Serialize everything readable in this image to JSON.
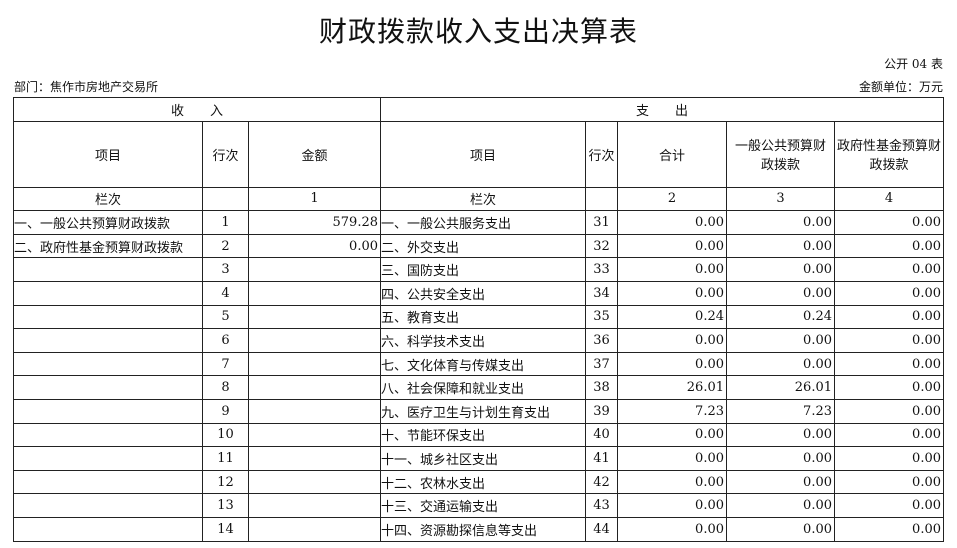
{
  "title": "财政拨款收入支出决算表",
  "table_code": "公开 04 表",
  "department": "部门：焦作市房地产交易所",
  "unit": "金额单位：万元",
  "income_header": "收　　入",
  "expense_header": "支　　出",
  "columns": {
    "item": "项目",
    "row_no": "行次",
    "amount": "金额",
    "exp_item": "项目",
    "exp_row_no": "行次",
    "total": "合计",
    "general": "一般公共预算财政拨款",
    "fund": "政府性基金预算财政拨款"
  },
  "column_index": {
    "label": "栏次",
    "c1": "1",
    "exp_label": "栏次",
    "c2": "2",
    "c3": "3",
    "c4": "4"
  },
  "rows": [
    {
      "in_item": "一、一般公共预算财政拨款",
      "in_no": "1",
      "in_amt": "579.28",
      "out_item": "一、一般公共服务支出",
      "out_no": "31",
      "total": "0.00",
      "general": "0.00",
      "fund": "0.00"
    },
    {
      "in_item": "二、政府性基金预算财政拨款",
      "in_no": "2",
      "in_amt": "0.00",
      "out_item": "二、外交支出",
      "out_no": "32",
      "total": "0.00",
      "general": "0.00",
      "fund": "0.00"
    },
    {
      "in_item": "",
      "in_no": "3",
      "in_amt": "",
      "out_item": "三、国防支出",
      "out_no": "33",
      "total": "0.00",
      "general": "0.00",
      "fund": "0.00"
    },
    {
      "in_item": "",
      "in_no": "4",
      "in_amt": "",
      "out_item": "四、公共安全支出",
      "out_no": "34",
      "total": "0.00",
      "general": "0.00",
      "fund": "0.00"
    },
    {
      "in_item": "",
      "in_no": "5",
      "in_amt": "",
      "out_item": "五、教育支出",
      "out_no": "35",
      "total": "0.24",
      "general": "0.24",
      "fund": "0.00"
    },
    {
      "in_item": "",
      "in_no": "6",
      "in_amt": "",
      "out_item": "六、科学技术支出",
      "out_no": "36",
      "total": "0.00",
      "general": "0.00",
      "fund": "0.00"
    },
    {
      "in_item": "",
      "in_no": "7",
      "in_amt": "",
      "out_item": "七、文化体育与传媒支出",
      "out_no": "37",
      "total": "0.00",
      "general": "0.00",
      "fund": "0.00"
    },
    {
      "in_item": "",
      "in_no": "8",
      "in_amt": "",
      "out_item": "八、社会保障和就业支出",
      "out_no": "38",
      "total": "26.01",
      "general": "26.01",
      "fund": "0.00"
    },
    {
      "in_item": "",
      "in_no": "9",
      "in_amt": "",
      "out_item": "九、医疗卫生与计划生育支出",
      "out_no": "39",
      "total": "7.23",
      "general": "7.23",
      "fund": "0.00"
    },
    {
      "in_item": "",
      "in_no": "10",
      "in_amt": "",
      "out_item": "十、节能环保支出",
      "out_no": "40",
      "total": "0.00",
      "general": "0.00",
      "fund": "0.00"
    },
    {
      "in_item": "",
      "in_no": "11",
      "in_amt": "",
      "out_item": "十一、城乡社区支出",
      "out_no": "41",
      "total": "0.00",
      "general": "0.00",
      "fund": "0.00"
    },
    {
      "in_item": "",
      "in_no": "12",
      "in_amt": "",
      "out_item": "十二、农林水支出",
      "out_no": "42",
      "total": "0.00",
      "general": "0.00",
      "fund": "0.00"
    },
    {
      "in_item": "",
      "in_no": "13",
      "in_amt": "",
      "out_item": "十三、交通运输支出",
      "out_no": "43",
      "total": "0.00",
      "general": "0.00",
      "fund": "0.00"
    },
    {
      "in_item": "",
      "in_no": "14",
      "in_amt": "",
      "out_item": "十四、资源勘探信息等支出",
      "out_no": "44",
      "total": "0.00",
      "general": "0.00",
      "fund": "0.00"
    }
  ]
}
